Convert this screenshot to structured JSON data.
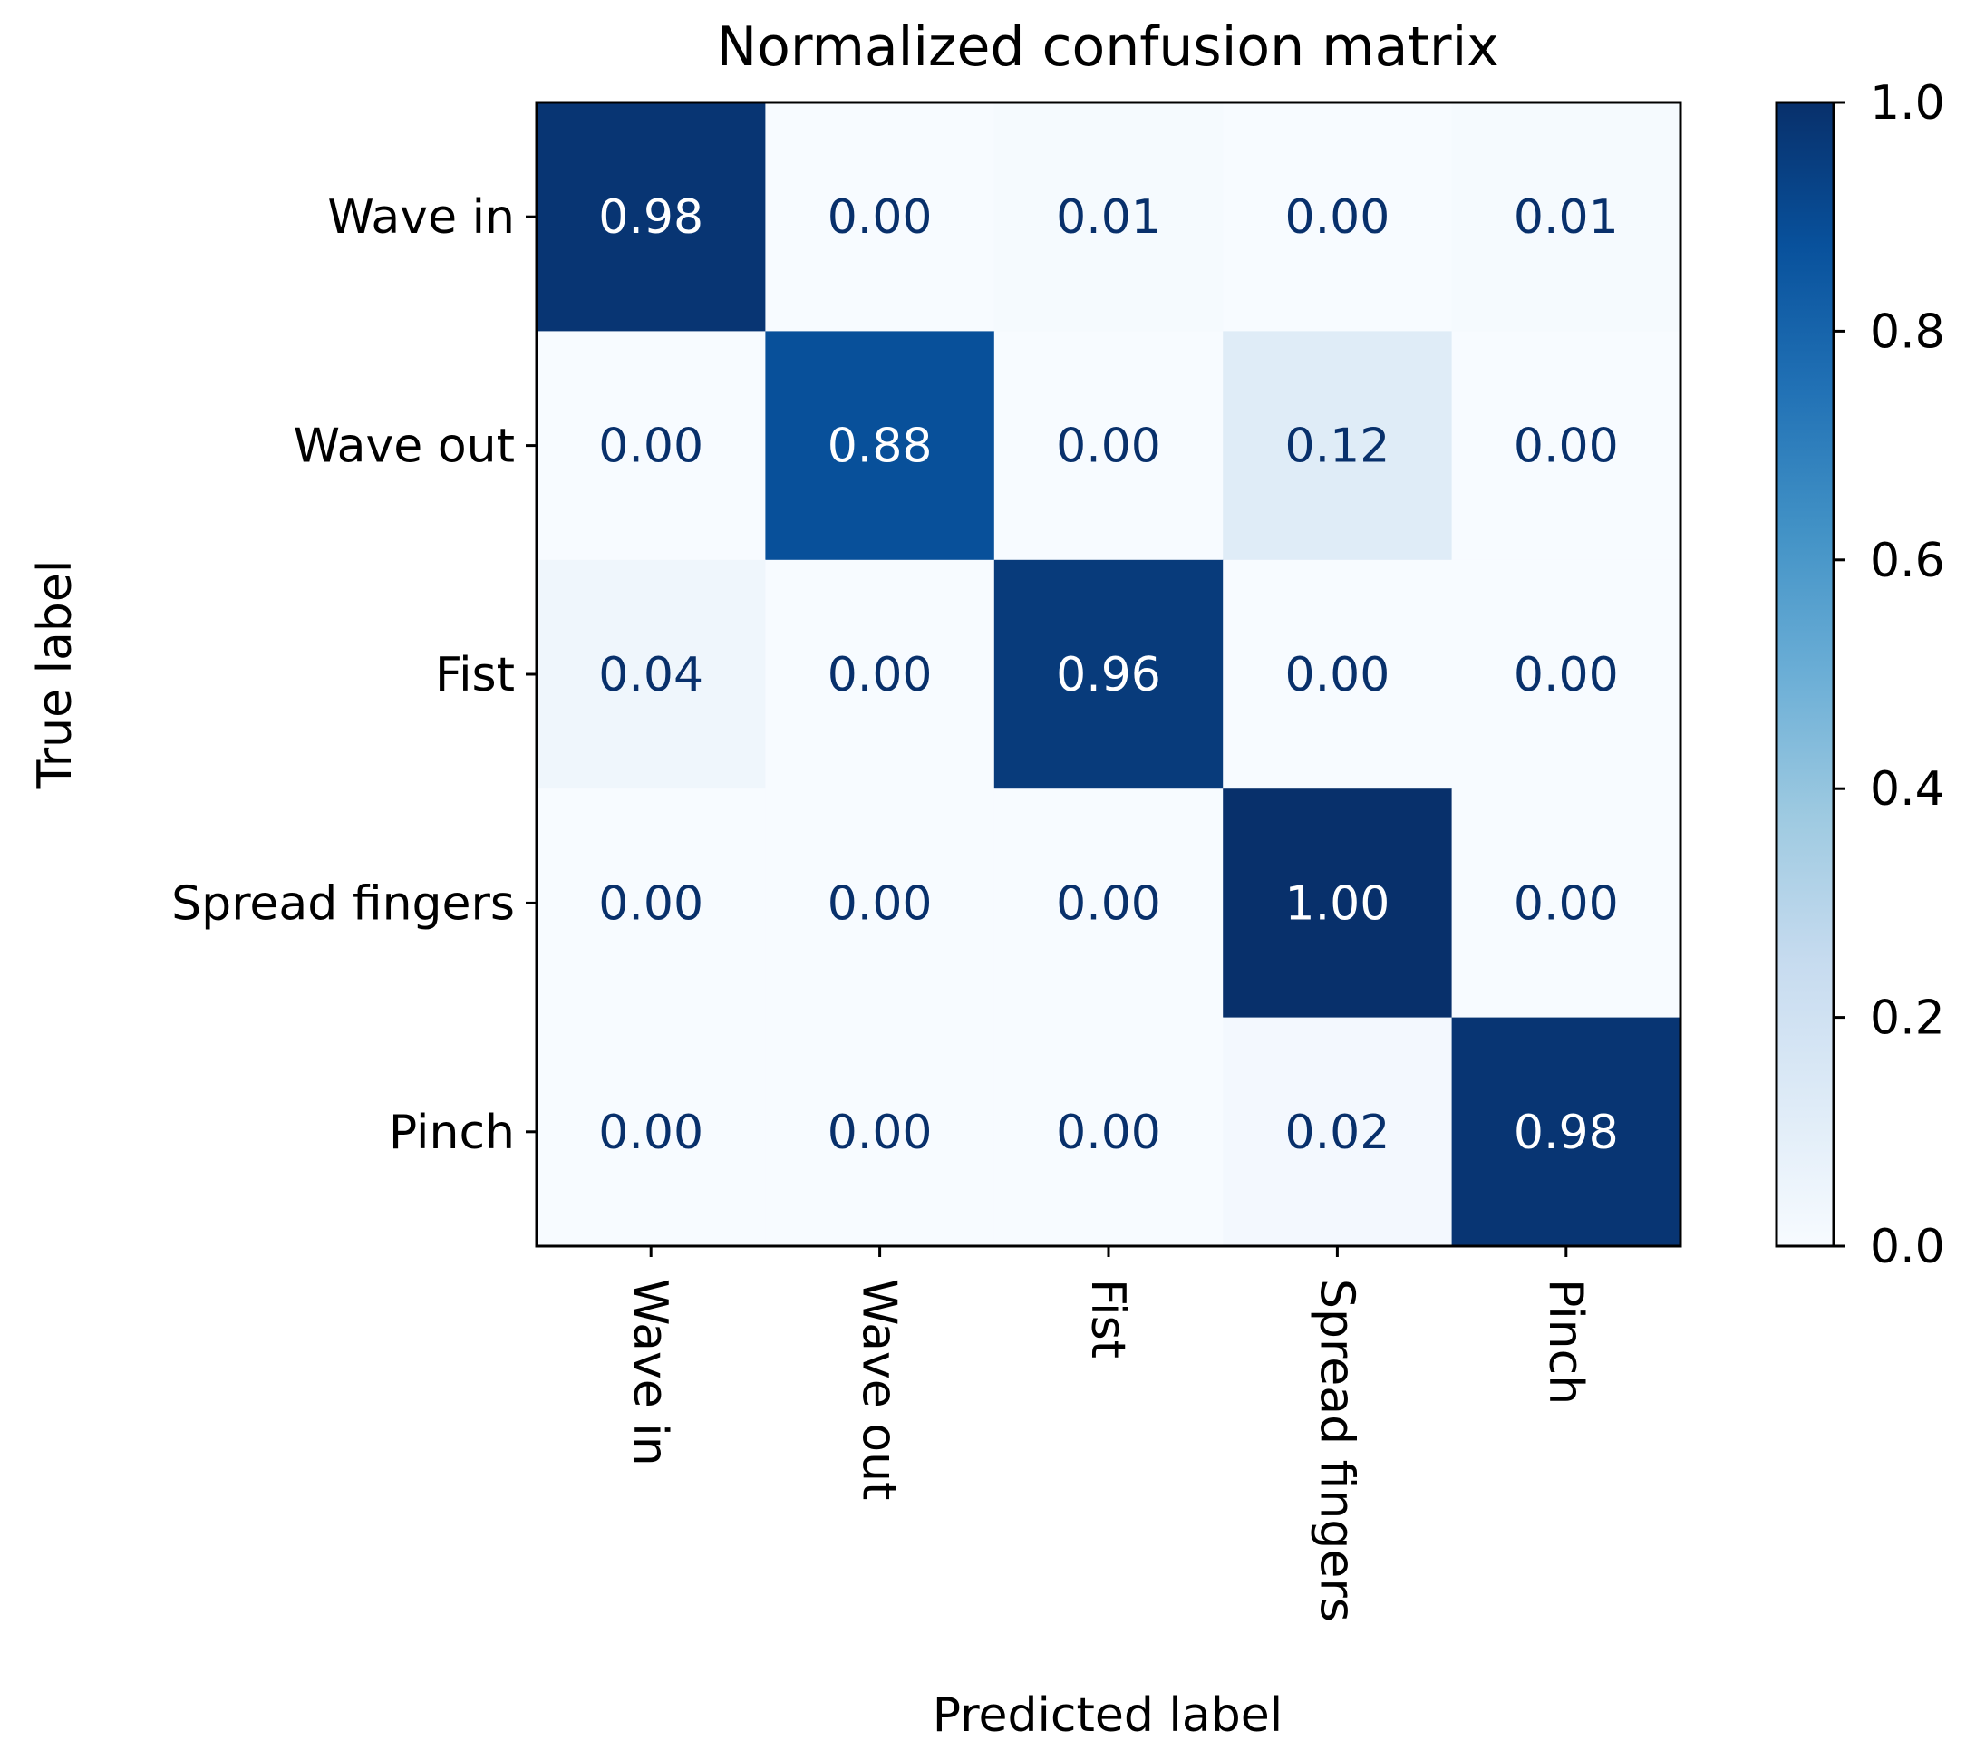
{
  "chart_data": {
    "type": "heatmap",
    "title": "Normalized confusion matrix",
    "xlabel": "Predicted label",
    "ylabel": "True label",
    "x_categories": [
      "Wave in",
      "Wave out",
      "Fist",
      "Spread fingers",
      "Pinch"
    ],
    "y_categories": [
      "Wave in",
      "Wave out",
      "Fist",
      "Spread fingers",
      "Pinch"
    ],
    "values": [
      [
        0.98,
        0.0,
        0.01,
        0.0,
        0.01
      ],
      [
        0.0,
        0.88,
        0.0,
        0.12,
        0.0
      ],
      [
        0.04,
        0.0,
        0.96,
        0.0,
        0.0
      ],
      [
        0.0,
        0.0,
        0.0,
        1.0,
        0.0
      ],
      [
        0.0,
        0.0,
        0.0,
        0.02,
        0.98
      ]
    ],
    "value_format": "0.00",
    "colormap": "Blues",
    "vmin": 0.0,
    "vmax": 1.0,
    "colorbar_ticks": [
      "0.0",
      "0.2",
      "0.4",
      "0.6",
      "0.8",
      "1.0"
    ],
    "colors": {
      "low": "#f7fbff",
      "high": "#08306b",
      "text_light": "#ffffff",
      "text_dark": "#08306b"
    }
  }
}
